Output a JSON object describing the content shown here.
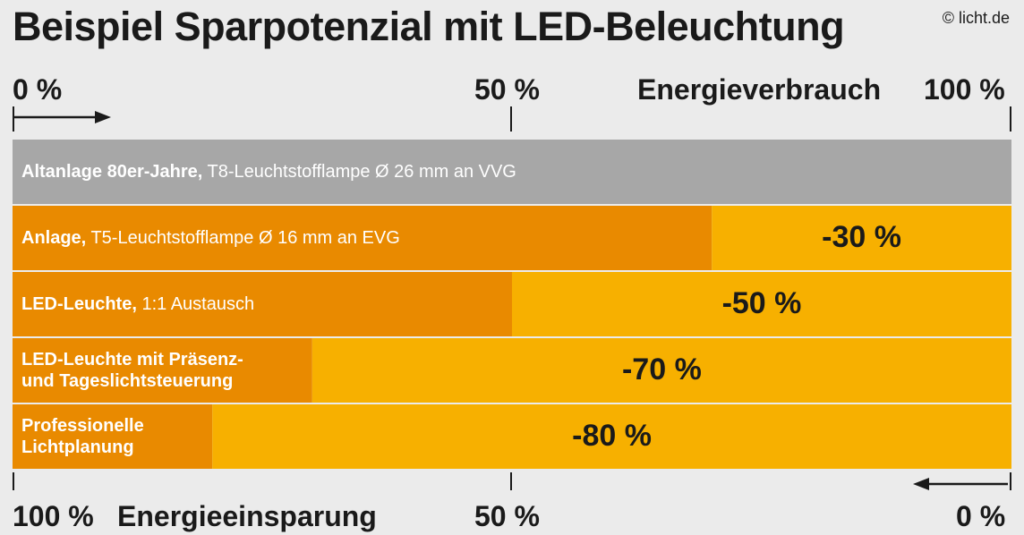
{
  "title": "Beispiel Sparpotenzial mit LED-Beleuchtung",
  "copyright": "© licht.de",
  "colors": {
    "background": "#ebebeb",
    "baseline_bar": "#a7a7a7",
    "consumption": "#e98a00",
    "savings": "#f7b000"
  },
  "top_axis": {
    "label": "Energieverbrauch",
    "ticks": [
      "0 %",
      "50 %",
      "100 %"
    ]
  },
  "bottom_axis": {
    "label": "Energieeinsparung",
    "ticks": [
      "100 %",
      "50 %",
      "0 %"
    ]
  },
  "chart_data": {
    "type": "bar",
    "orientation": "horizontal",
    "xlim": [
      0,
      100
    ],
    "categories": [
      {
        "bold": "Altanlage 80er-Jahre,",
        "rest": " T8-Leuchtstofflampe Ø 26 mm an VVG"
      },
      {
        "bold": "Anlage,",
        "rest": " T5-Leuchtstofflampe Ø 16 mm an EVG"
      },
      {
        "bold": "LED-Leuchte,",
        "rest": " 1:1 Austausch"
      },
      {
        "bold": "LED-Leuchte mit Präsenz-\nund Tageslichtsteuerung",
        "rest": ""
      },
      {
        "bold": "Professionelle\nLichtplanung",
        "rest": ""
      }
    ],
    "series": [
      {
        "name": "Energieverbrauch",
        "values": [
          100,
          70,
          50,
          30,
          20
        ]
      },
      {
        "name": "Energieeinsparung",
        "values": [
          0,
          30,
          50,
          70,
          80
        ]
      }
    ],
    "savings_labels": [
      "",
      "-30 %",
      "-50 %",
      "-70 %",
      "-80 %"
    ]
  }
}
